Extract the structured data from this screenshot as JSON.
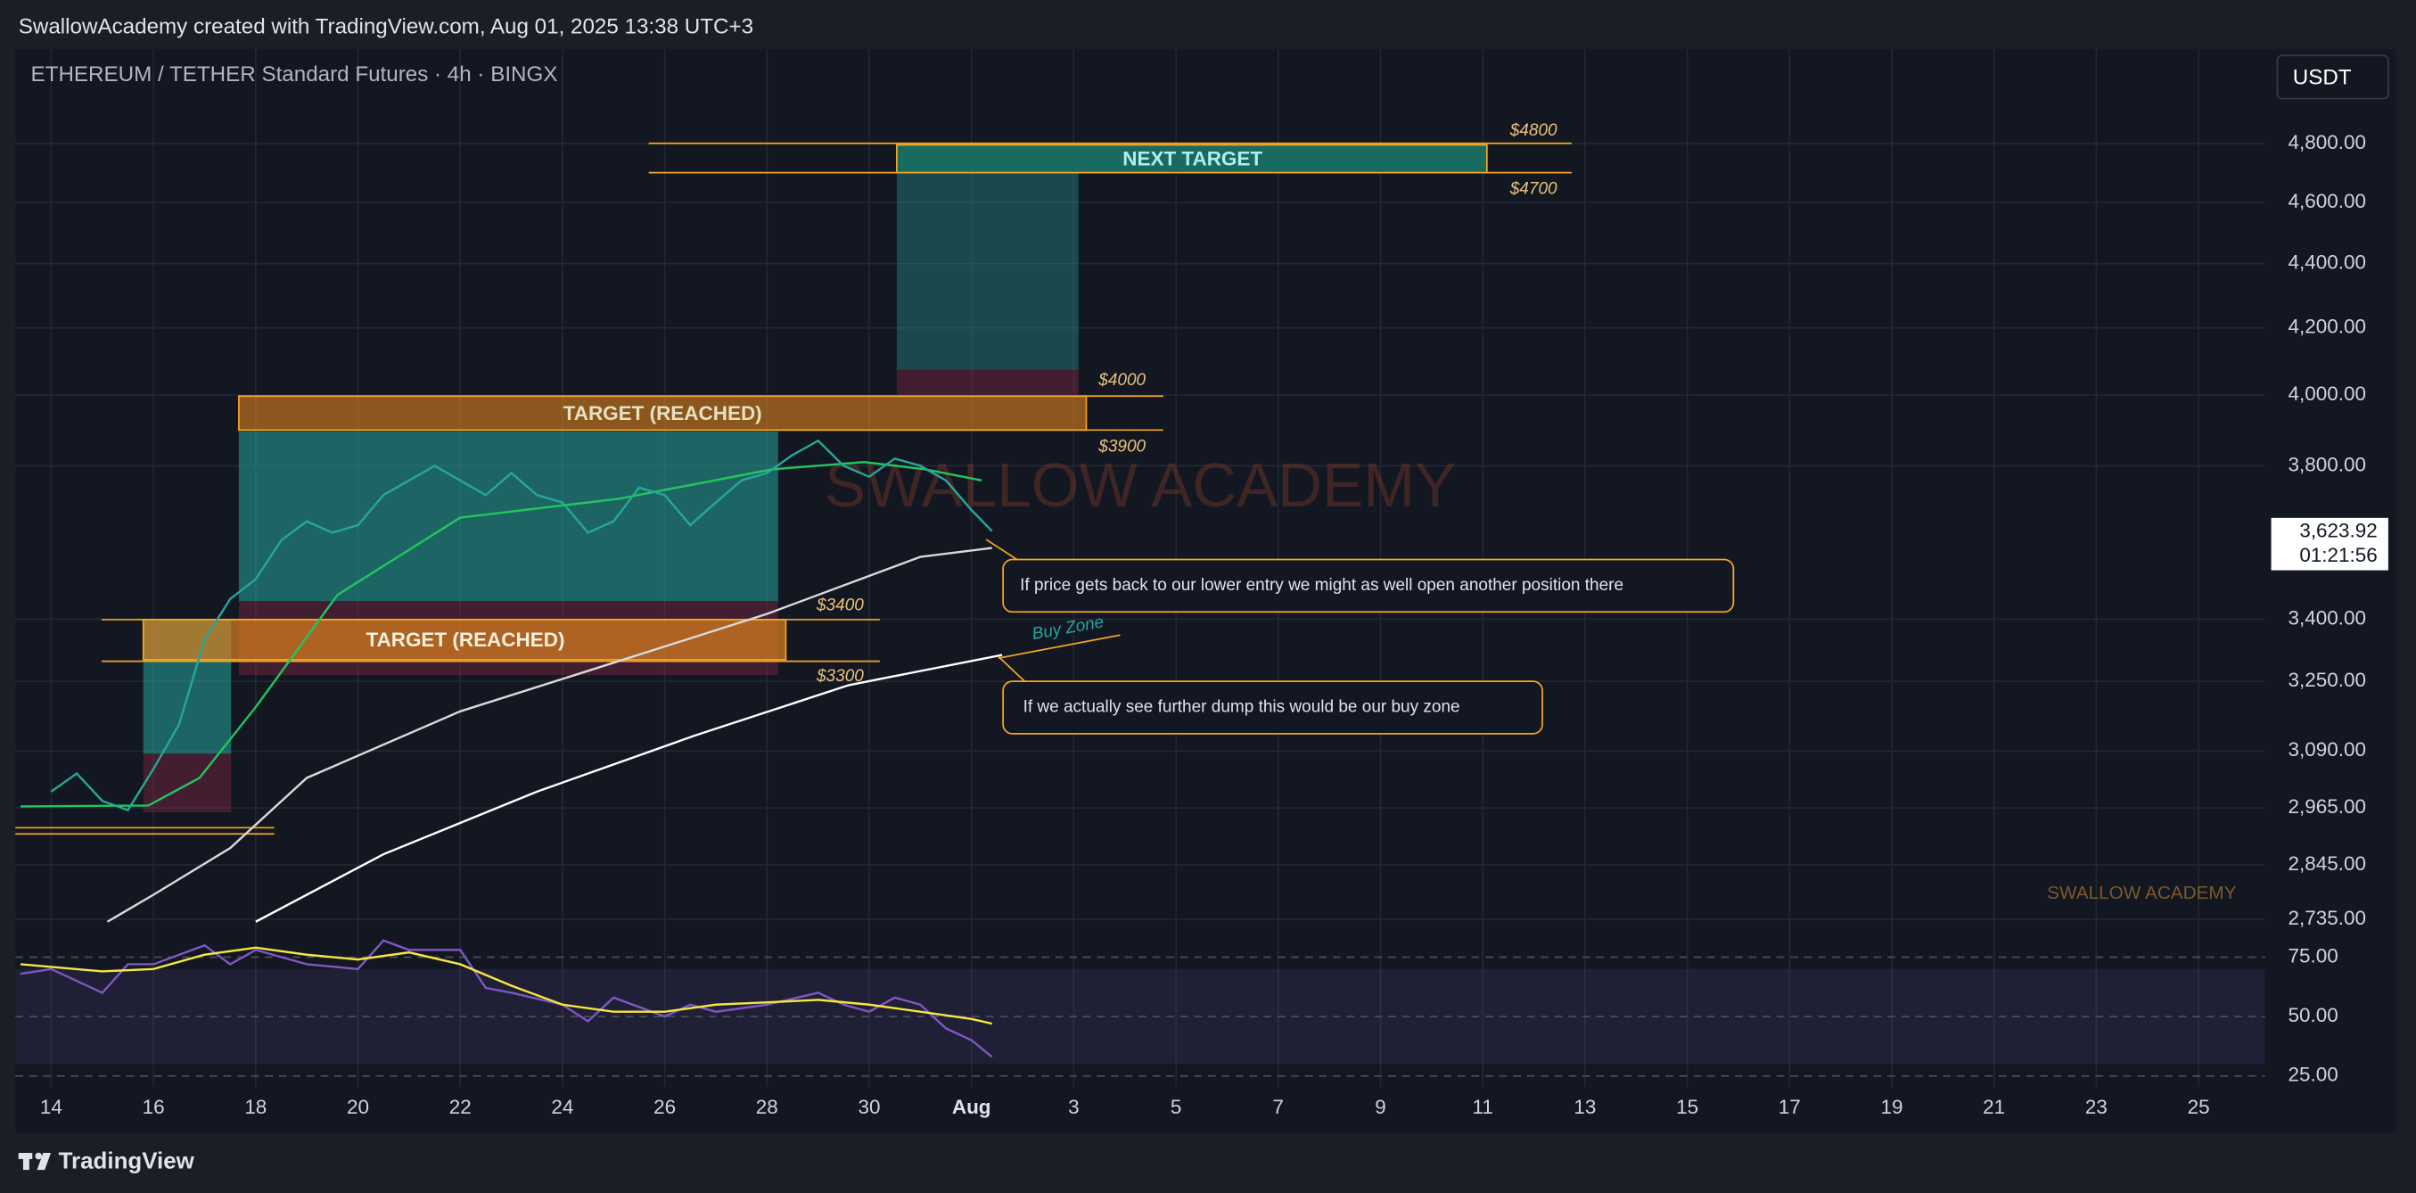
{
  "header": {
    "text": "SwallowAcademy created with TradingView.com, Aug 01, 2025 13:38 UTC+3"
  },
  "chart_data": [
    {
      "type": "line",
      "title": "ETHEREUM / TETHER Standard Futures · 4h · BINGX",
      "log_scale": true,
      "grid": true,
      "ylim": [
        2730,
        5140
      ],
      "yticks": [
        {
          "value": 4800,
          "label": "4,800.00"
        },
        {
          "value": 4600,
          "label": "4,600.00"
        },
        {
          "value": 4400,
          "label": "4,400.00"
        },
        {
          "value": 4200,
          "label": "4,200.00"
        },
        {
          "value": 4000,
          "label": "4,000.00"
        },
        {
          "value": 3800,
          "label": "3,800.00"
        },
        {
          "value": 3400,
          "label": "3,400.00"
        },
        {
          "value": 3250,
          "label": "3,250.00"
        },
        {
          "value": 3090,
          "label": "3,090.00"
        },
        {
          "value": 2965,
          "label": "2,965.00"
        },
        {
          "value": 2845,
          "label": "2,845.00"
        },
        {
          "value": 2735,
          "label": "2,735.00"
        }
      ],
      "xlim": [
        -0.7,
        43.3
      ],
      "xticks": [
        {
          "value": 0,
          "label": "14"
        },
        {
          "value": 2,
          "label": "16"
        },
        {
          "value": 4,
          "label": "18"
        },
        {
          "value": 6,
          "label": "20"
        },
        {
          "value": 8,
          "label": "22"
        },
        {
          "value": 10,
          "label": "24"
        },
        {
          "value": 12,
          "label": "26"
        },
        {
          "value": 14,
          "label": "28"
        },
        {
          "value": 16,
          "label": "30"
        },
        {
          "value": 18,
          "label": "Aug"
        },
        {
          "value": 20,
          "label": "3"
        },
        {
          "value": 22,
          "label": "5"
        },
        {
          "value": 24,
          "label": "7"
        },
        {
          "value": 26,
          "label": "9"
        },
        {
          "value": 28,
          "label": "11"
        },
        {
          "value": 30,
          "label": "13"
        },
        {
          "value": 32,
          "label": "15"
        },
        {
          "value": 34,
          "label": "17"
        },
        {
          "value": 36,
          "label": "19"
        },
        {
          "value": 38,
          "label": "21"
        },
        {
          "value": 40,
          "label": "23"
        },
        {
          "value": 42,
          "label": "25"
        }
      ],
      "series": [
        {
          "color": "#d9d9d9",
          "x": [
            1.1,
            2,
            3.5,
            5,
            8,
            11,
            14,
            17,
            18.4
          ],
          "values": [
            2730,
            2784,
            2880,
            3030,
            3180,
            3294,
            3413,
            3557,
            3580
          ]
        },
        {
          "color": "#ffffff",
          "x": [
            4,
            6.5,
            9.5,
            12.6,
            15.6,
            18.6
          ],
          "values": [
            2730,
            2867,
            3000,
            3125,
            3241,
            3313
          ]
        },
        {
          "color": "#22c55e",
          "x": [
            -0.6,
            1.9,
            2.9,
            4,
            5.6,
            8,
            11.1,
            14.1,
            15.9,
            17.1,
            18.2
          ],
          "values": [
            2968,
            2970,
            3030,
            3190,
            3460,
            3660,
            3710,
            3790,
            3810,
            3790,
            3760
          ]
        },
        {
          "color": "#26a69a",
          "x": [
            0,
            0.5,
            1,
            1.5,
            2,
            2.5,
            3,
            3.5,
            4,
            4.5,
            5,
            5.5,
            6,
            6.5,
            7,
            7.5,
            8,
            8.5,
            9,
            9.5,
            10,
            10.5,
            11,
            11.5,
            12,
            12.5,
            13,
            13.5,
            14,
            14.5,
            15,
            15.5,
            16,
            16.5,
            17,
            17.5,
            18,
            18.4
          ],
          "values": [
            3000,
            3040,
            2980,
            2960,
            3050,
            3150,
            3350,
            3450,
            3500,
            3600,
            3650,
            3620,
            3640,
            3720,
            3760,
            3800,
            3760,
            3720,
            3780,
            3720,
            3700,
            3620,
            3650,
            3740,
            3720,
            3640,
            3700,
            3760,
            3780,
            3830,
            3870,
            3800,
            3770,
            3820,
            3800,
            3760,
            3680,
            3624
          ]
        }
      ]
    },
    {
      "type": "line",
      "ylim": [
        20.5,
        88.6
      ],
      "yticks": [
        {
          "value": 75,
          "label": "75.00"
        },
        {
          "value": 50,
          "label": "50.00"
        },
        {
          "value": 25,
          "label": "25.00"
        }
      ],
      "band": [
        30,
        70
      ],
      "xlim": [
        -0.7,
        43.3
      ],
      "series": [
        {
          "color": "#7e57c2",
          "x": [
            -0.6,
            0,
            1,
            1.5,
            2,
            3,
            3.5,
            4,
            5,
            6,
            6.5,
            7,
            8,
            8.5,
            9,
            10,
            10.5,
            11,
            12,
            12.5,
            13,
            14,
            15,
            15.5,
            16,
            16.5,
            17,
            17.5,
            18,
            18.4
          ],
          "values": [
            68,
            70,
            60,
            72,
            72,
            80,
            72,
            78,
            72,
            70,
            82,
            78,
            78,
            62,
            60,
            55,
            48,
            58,
            50,
            55,
            52,
            55,
            60,
            55,
            52,
            58,
            55,
            45,
            40,
            33
          ]
        },
        {
          "color": "#f5e642",
          "x": [
            -0.6,
            1,
            2,
            3,
            4,
            5,
            6,
            7,
            8,
            9,
            10,
            11,
            12,
            13,
            14,
            15,
            16,
            17,
            18,
            18.4
          ],
          "values": [
            72,
            69,
            70,
            76,
            79,
            76,
            74,
            77,
            72,
            63,
            55,
            52,
            52,
            55,
            56,
            57,
            55,
            52,
            49,
            47
          ]
        }
      ]
    }
  ],
  "annotations": {
    "next_target": "NEXT TARGET",
    "target_upper": "TARGET (REACHED)",
    "target_lower": "TARGET (REACHED)",
    "l4800": "$4800",
    "l4700": "$4700",
    "l4000": "$4000",
    "l3900": "$3900",
    "l3400": "$3400",
    "l3300": "$3300",
    "buy_zone": "Buy Zone",
    "note1": "If price gets back to our lower entry we might as well open another position there",
    "note2": "If we actually see further dump this would be our buy zone",
    "watermark": "SWALLOW ACADEMY",
    "watermark_small": "SWALLOW ACADEMY"
  },
  "toolbar": {
    "currency": "USDT",
    "last_price": "3,623.92",
    "countdown": "01:21:56"
  },
  "footer": {
    "brand": "TradingView"
  }
}
